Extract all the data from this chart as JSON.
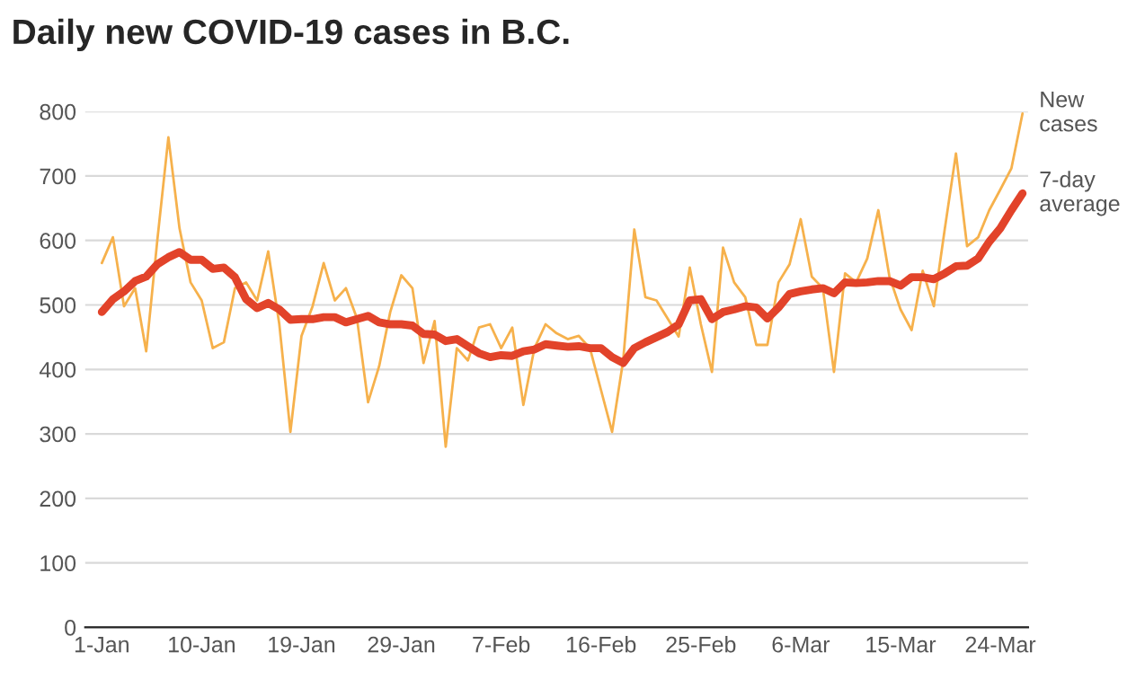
{
  "chart_data": {
    "type": "line",
    "title": "Daily new COVID-19 cases in B.C.",
    "categories": [
      "1-Jan",
      null,
      null,
      null,
      null,
      null,
      null,
      null,
      null,
      "10-Jan",
      null,
      null,
      null,
      null,
      null,
      null,
      null,
      null,
      "19-Jan",
      null,
      null,
      null,
      null,
      null,
      null,
      null,
      null,
      "29-Jan",
      null,
      null,
      null,
      null,
      null,
      null,
      null,
      null,
      "7-Feb",
      null,
      null,
      null,
      null,
      null,
      null,
      null,
      null,
      "16-Feb",
      null,
      null,
      null,
      null,
      null,
      null,
      null,
      null,
      "25-Feb",
      null,
      null,
      null,
      null,
      null,
      null,
      null,
      null,
      "6-Mar",
      null,
      null,
      null,
      null,
      null,
      null,
      null,
      null,
      "15-Mar",
      null,
      null,
      null,
      null,
      null,
      null,
      null,
      null,
      "24-Mar",
      null,
      null
    ],
    "series": [
      {
        "name": "New cases",
        "color": "#f6b14c",
        "values": [
          565,
          605,
          498,
          526,
          428,
          600,
          760,
          619,
          535,
          507,
          433,
          442,
          526,
          535,
          507,
          583,
          470,
          303,
          452,
          498,
          565,
          507,
          526,
          479,
          349,
          405,
          489,
          546,
          526,
          410,
          475,
          280,
          433,
          414,
          465,
          470,
          433,
          465,
          345,
          433,
          470,
          456,
          447,
          452,
          433,
          368,
          303,
          414,
          617,
          512,
          507,
          479,
          451,
          558,
          470,
          396,
          589,
          535,
          512,
          438,
          438,
          535,
          563,
          633,
          544,
          526,
          396,
          549,
          535,
          572,
          647,
          544,
          493,
          461,
          553,
          498,
          619,
          735,
          591,
          605,
          647,
          679,
          712,
          797
        ]
      },
      {
        "name": "7-day average",
        "color": "#e2432a",
        "values": [
          489,
          509,
          521,
          537,
          544,
          563,
          574,
          582,
          570,
          570,
          556,
          558,
          543,
          509,
          495,
          503,
          493,
          477,
          478,
          478,
          481,
          481,
          473,
          478,
          483,
          473,
          470,
          470,
          468,
          455,
          454,
          444,
          447,
          436,
          425,
          419,
          422,
          421,
          428,
          431,
          439,
          437,
          435,
          436,
          433,
          433,
          419,
          410,
          433,
          442,
          450,
          458,
          470,
          507,
          509,
          478,
          489,
          493,
          498,
          496,
          479,
          496,
          517,
          521,
          524,
          526,
          518,
          535,
          534,
          535,
          537,
          537,
          530,
          543,
          543,
          540,
          549,
          560,
          561,
          572,
          598,
          619,
          647,
          673
        ]
      }
    ],
    "ylim": [
      0,
      800
    ],
    "yticks": [
      0,
      100,
      200,
      300,
      400,
      500,
      600,
      700,
      800
    ],
    "grid": "y",
    "legend": false
  }
}
